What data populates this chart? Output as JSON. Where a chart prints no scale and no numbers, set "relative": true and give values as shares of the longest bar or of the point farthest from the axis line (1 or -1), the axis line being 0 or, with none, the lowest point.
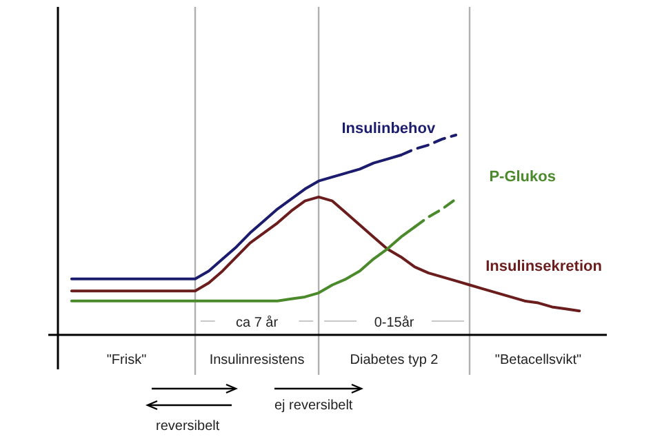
{
  "chart_data": {
    "type": "line",
    "relative": true,
    "grid": "x",
    "categories": [
      null,
      null,
      null,
      null,
      null,
      null,
      null,
      null,
      null,
      null,
      null,
      null,
      null,
      null,
      null,
      null,
      null,
      null,
      null,
      null,
      null,
      null,
      null,
      null,
      null,
      null,
      null,
      null,
      null,
      null,
      null,
      null,
      null,
      null,
      null,
      null,
      null,
      null,
      null,
      null,
      null
    ],
    "series": [
      {
        "name": "Insulinbehov",
        "color": "#1c1c6e",
        "values": [
          null,
          0.28,
          0.28,
          0.28,
          0.28,
          0.28,
          0.28,
          0.28,
          0.28,
          0.28,
          0.28,
          0.32,
          0.38,
          0.44,
          0.51,
          0.57,
          0.63,
          0.68,
          0.73,
          0.77,
          0.79,
          0.81,
          0.83,
          0.86,
          0.88,
          0.9,
          null,
          null,
          null,
          null,
          null,
          null,
          null,
          null,
          null,
          null,
          null,
          null,
          null,
          null,
          null
        ]
      },
      {
        "color": "#1c1c6e",
        "line_style": "dashed",
        "values": [
          null,
          null,
          null,
          null,
          null,
          null,
          null,
          null,
          null,
          null,
          null,
          null,
          null,
          null,
          null,
          null,
          null,
          null,
          null,
          null,
          null,
          null,
          null,
          null,
          null,
          0.9,
          0.93,
          0.95,
          0.98,
          1.0,
          null,
          null,
          null,
          null,
          null,
          null,
          null,
          null,
          null,
          null,
          null
        ]
      },
      {
        "name": "Insulinsekretion",
        "color": "#6b1c1c",
        "values": [
          null,
          0.22,
          0.22,
          0.22,
          0.22,
          0.22,
          0.22,
          0.22,
          0.22,
          0.22,
          0.22,
          0.26,
          0.32,
          0.39,
          0.46,
          0.51,
          0.56,
          0.62,
          0.67,
          0.69,
          0.67,
          0.61,
          0.55,
          0.49,
          0.43,
          0.39,
          0.34,
          0.31,
          0.29,
          0.27,
          0.25,
          0.23,
          0.21,
          0.19,
          0.17,
          0.16,
          0.14,
          0.13,
          0.12,
          null,
          null
        ]
      },
      {
        "name": "P-Glukos",
        "color": "#4a8a2a",
        "values": [
          null,
          0.17,
          0.17,
          0.17,
          0.17,
          0.17,
          0.17,
          0.17,
          0.17,
          0.17,
          0.17,
          0.17,
          0.17,
          0.17,
          0.17,
          0.17,
          0.17,
          0.18,
          0.19,
          0.21,
          0.25,
          0.28,
          0.32,
          0.38,
          0.43,
          0.49,
          0.54,
          null,
          null,
          null,
          null,
          null,
          null,
          null,
          null,
          null,
          null,
          null,
          null,
          null,
          null
        ]
      },
      {
        "color": "#4a8a2a",
        "line_style": "dashed",
        "values": [
          null,
          null,
          null,
          null,
          null,
          null,
          null,
          null,
          null,
          null,
          null,
          null,
          null,
          null,
          null,
          null,
          null,
          null,
          null,
          null,
          null,
          null,
          null,
          null,
          null,
          null,
          0.54,
          0.59,
          0.63,
          0.68,
          null,
          null,
          null,
          null,
          null,
          null,
          null,
          null,
          null,
          null,
          null
        ]
      }
    ],
    "annotations": [
      "\"Frisk\"",
      "Insulinresistens",
      "Diabetes typ 2",
      "\"Betacellsvikt\"",
      "ca 7 år",
      "0-15år",
      "ej reversibelt",
      "reversibelt"
    ]
  }
}
